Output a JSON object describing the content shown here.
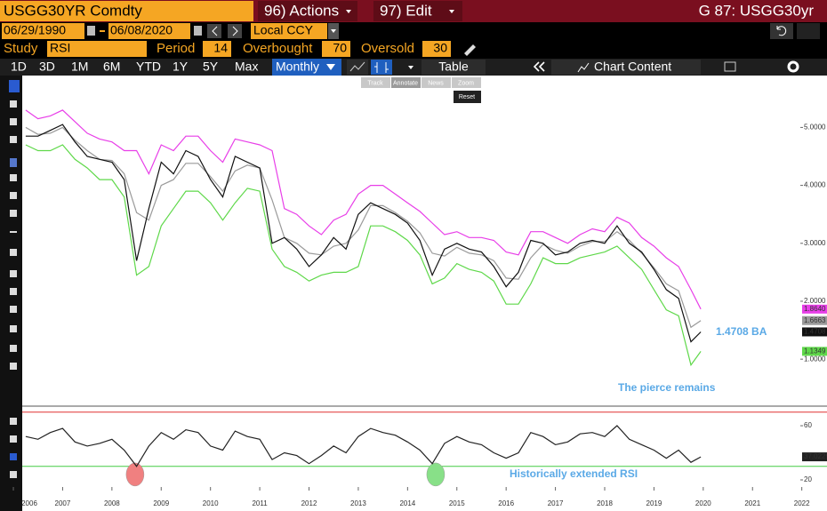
{
  "ui": {
    "security": "USGG30YR Comdty",
    "actions": "96) Actions",
    "edit": "97) Edit",
    "page": "G 87: USGG30yr",
    "start_date": "06/29/1990",
    "end_date": "06/08/2020",
    "currency": "Local CCY",
    "study_label": "Study",
    "study": "RSI",
    "period_label": "Period",
    "period": "14",
    "overbought_label": "Overbought",
    "overbought": "70",
    "oversold_label": "Oversold",
    "oversold": "30",
    "ranges": [
      "1D",
      "3D",
      "1M",
      "6M",
      "YTD",
      "1Y",
      "5Y",
      "Max"
    ],
    "frequency": "Monthly",
    "table": "Table",
    "chart_content": "Chart Content",
    "tools": [
      "Track",
      "Annotate",
      "News",
      "Zoom"
    ],
    "reset": "Reset"
  },
  "chart_data": [
    {
      "type": "line",
      "x": [
        2006.75,
        2007,
        2007.25,
        2007.5,
        2007.75,
        2008,
        2008.25,
        2008.5,
        2008.75,
        2009,
        2009.25,
        2009.5,
        2009.75,
        2010,
        2010.25,
        2010.5,
        2010.75,
        2011,
        2011.25,
        2011.5,
        2011.75,
        2012,
        2012.25,
        2012.5,
        2012.75,
        2013,
        2013.25,
        2013.5,
        2013.75,
        2014,
        2014.25,
        2014.5,
        2014.75,
        2015,
        2015.25,
        2015.5,
        2015.75,
        2016,
        2016.25,
        2016.5,
        2016.75,
        2017,
        2017.25,
        2017.5,
        2017.75,
        2018,
        2018.25,
        2018.5,
        2018.75,
        2019,
        2019.25,
        2019.5,
        2019.75,
        2020,
        2020.25,
        2020.45
      ],
      "series": [
        {
          "color": "#e83ee8",
          "last_label": "1.8640",
          "values": [
            5.3,
            5.15,
            5.2,
            5.3,
            5.1,
            4.9,
            4.8,
            4.75,
            4.6,
            4.6,
            4.2,
            4.7,
            4.6,
            4.85,
            4.85,
            4.6,
            4.4,
            4.8,
            4.75,
            4.7,
            4.6,
            3.6,
            3.5,
            3.3,
            3.15,
            3.4,
            3.5,
            3.85,
            4.0,
            4.0,
            3.85,
            3.7,
            3.55,
            3.35,
            3.15,
            3.2,
            3.1,
            3.1,
            3.05,
            2.85,
            2.8,
            3.2,
            3.2,
            3.1,
            3.0,
            3.15,
            3.25,
            3.2,
            3.45,
            3.35,
            3.1,
            2.95,
            2.75,
            2.6,
            2.2,
            1.864
          ]
        },
        {
          "color": "#9a9a9a",
          "last_label": "1.6663",
          "values": [
            5.0,
            4.88,
            4.9,
            5.0,
            4.78,
            4.6,
            4.45,
            4.43,
            4.2,
            3.53,
            3.4,
            4.0,
            4.1,
            4.38,
            4.38,
            4.15,
            3.9,
            4.25,
            4.35,
            4.3,
            3.75,
            3.1,
            3.0,
            2.83,
            2.8,
            2.95,
            3.0,
            3.23,
            3.65,
            3.65,
            3.53,
            3.38,
            3.18,
            2.83,
            2.78,
            2.93,
            2.83,
            2.8,
            2.7,
            2.4,
            2.38,
            2.75,
            2.98,
            2.88,
            2.83,
            2.95,
            3.03,
            3.03,
            3.2,
            3.05,
            2.83,
            2.58,
            2.3,
            2.18,
            1.55,
            1.6663
          ]
        },
        {
          "color": "#5fd84a",
          "last_label": "1.1349",
          "values": [
            4.7,
            4.6,
            4.6,
            4.7,
            4.45,
            4.3,
            4.1,
            4.1,
            3.8,
            2.45,
            2.6,
            3.3,
            3.6,
            3.9,
            3.9,
            3.7,
            3.4,
            3.7,
            3.95,
            3.9,
            2.9,
            2.6,
            2.5,
            2.35,
            2.45,
            2.5,
            2.5,
            2.6,
            3.3,
            3.3,
            3.2,
            3.05,
            2.8,
            2.3,
            2.4,
            2.65,
            2.55,
            2.5,
            2.35,
            1.95,
            1.95,
            2.3,
            2.75,
            2.65,
            2.65,
            2.75,
            2.8,
            2.85,
            2.95,
            2.75,
            2.55,
            2.2,
            1.85,
            1.75,
            0.9,
            1.1349
          ]
        },
        {
          "color": "#111111",
          "last_label": "1.4708",
          "values": [
            4.85,
            4.85,
            4.95,
            5.05,
            4.75,
            4.5,
            4.45,
            4.4,
            4.1,
            2.7,
            3.6,
            4.4,
            4.2,
            4.6,
            4.5,
            4.1,
            3.8,
            4.5,
            4.4,
            4.3,
            3.0,
            3.1,
            2.9,
            2.6,
            2.8,
            3.1,
            2.9,
            3.5,
            3.7,
            3.6,
            3.5,
            3.35,
            3.05,
            2.45,
            2.9,
            3.0,
            2.9,
            2.85,
            2.6,
            2.25,
            2.5,
            3.05,
            3.0,
            2.8,
            2.85,
            3.0,
            3.05,
            3.0,
            3.3,
            3.0,
            2.85,
            2.55,
            2.2,
            2.05,
            1.3,
            1.4708
          ]
        }
      ],
      "xlim": [
        2006.68,
        2022.47
      ],
      "ylim": [
        0.22,
        5.85
      ],
      "yticks": [
        {
          "value": 1,
          "label": "1.0000"
        },
        {
          "value": 2,
          "label": "2.0000"
        },
        {
          "value": 3,
          "label": "3.0000"
        },
        {
          "value": 4,
          "label": "4.0000"
        },
        {
          "value": 5,
          "label": "5.0000"
        }
      ],
      "annotations": [
        "1.4708 BA",
        "The pierce remains"
      ]
    },
    {
      "type": "line",
      "x": [
        2006.75,
        2007,
        2007.25,
        2007.5,
        2007.75,
        2008,
        2008.25,
        2008.5,
        2008.75,
        2009,
        2009.25,
        2009.5,
        2009.75,
        2010,
        2010.25,
        2010.5,
        2010.75,
        2011,
        2011.25,
        2011.5,
        2011.75,
        2012,
        2012.25,
        2012.5,
        2012.75,
        2013,
        2013.25,
        2013.5,
        2013.75,
        2014,
        2014.25,
        2014.5,
        2014.75,
        2015,
        2015.25,
        2015.5,
        2015.75,
        2016,
        2016.25,
        2016.5,
        2016.75,
        2017,
        2017.25,
        2017.5,
        2017.75,
        2018,
        2018.25,
        2018.5,
        2018.75,
        2019,
        2019.25,
        2019.5,
        2019.75,
        2020,
        2020.25,
        2020.45
      ],
      "series": [
        {
          "color": "#222222",
          "last_label": "37.0225",
          "values": [
            52,
            50,
            55,
            58,
            48,
            45,
            47,
            50,
            42,
            30,
            45,
            55,
            50,
            57,
            55,
            45,
            42,
            56,
            52,
            50,
            35,
            40,
            38,
            32,
            38,
            45,
            40,
            52,
            58,
            55,
            53,
            48,
            42,
            32,
            47,
            52,
            48,
            46,
            40,
            36,
            40,
            55,
            52,
            46,
            48,
            54,
            55,
            52,
            60,
            50,
            46,
            42,
            36,
            42,
            33,
            37.0225
          ]
        }
      ],
      "xlim": [
        2006.68,
        2022.47
      ],
      "ylim": [
        14.75,
        72.5
      ],
      "yticks": [
        20,
        60
      ],
      "hlines": [
        {
          "value": 70,
          "color": "#e03030"
        },
        {
          "value": 30,
          "color": "#44cc44"
        }
      ],
      "highlights": [
        {
          "x": 2008.97,
          "y": 24,
          "color": "#f08080"
        },
        {
          "x": 2015.07,
          "y": 24,
          "color": "#88e088"
        }
      ],
      "xticks": [
        {
          "value": 2006.5,
          "label": "2006"
        },
        {
          "value": 2007.5,
          "label": "2007"
        },
        {
          "value": 2008.5,
          "label": "2008"
        },
        {
          "value": 2009.5,
          "label": "2009"
        },
        {
          "value": 2010.5,
          "label": "2010"
        },
        {
          "value": 2011.5,
          "label": "2011"
        },
        {
          "value": 2012.5,
          "label": "2012"
        },
        {
          "value": 2013.5,
          "label": "2013"
        },
        {
          "value": 2014.5,
          "label": "2014"
        },
        {
          "value": 2015.5,
          "label": "2015"
        },
        {
          "value": 2016.5,
          "label": "2016"
        },
        {
          "value": 2017.5,
          "label": "2017"
        },
        {
          "value": 2018.5,
          "label": "2018"
        },
        {
          "value": 2019.5,
          "label": "2019"
        },
        {
          "value": 2020.5,
          "label": "2020"
        },
        {
          "value": 2021.5,
          "label": "2021"
        },
        {
          "value": 2022.5,
          "label": "2022"
        }
      ],
      "annotations": [
        "Historically extended RSI"
      ]
    }
  ]
}
